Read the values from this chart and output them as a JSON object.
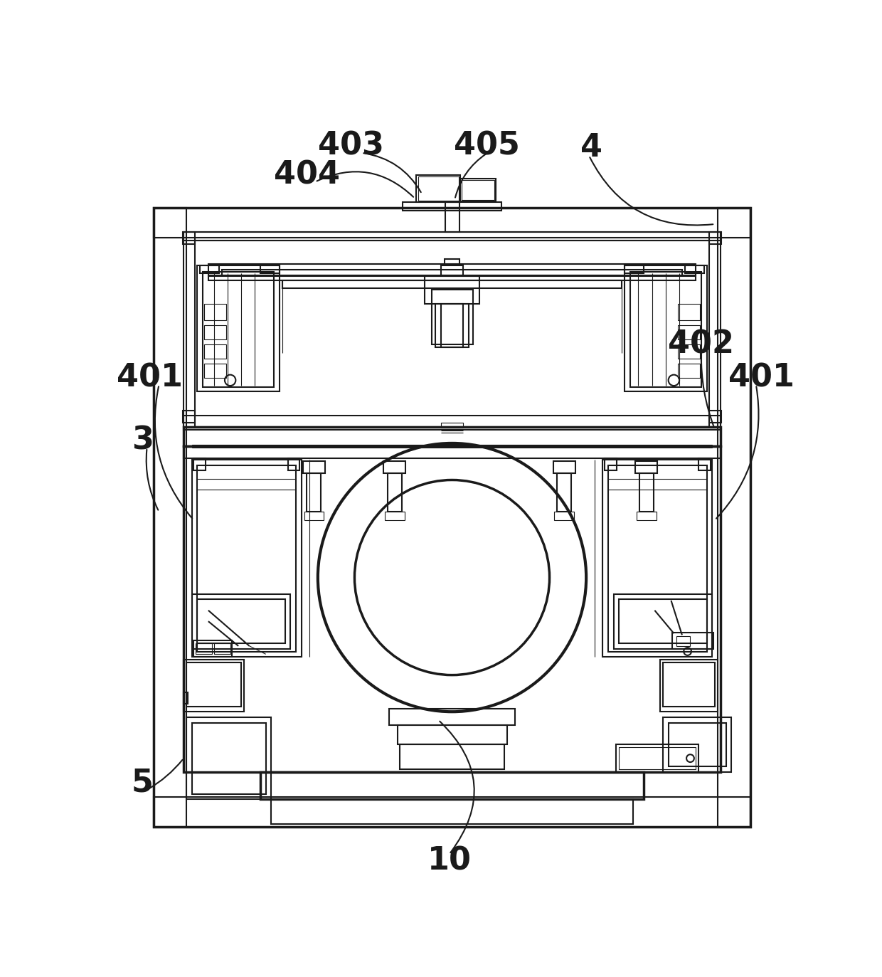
{
  "bg_color": "#ffffff",
  "lc": "#1a1a1a",
  "lw1": 2.5,
  "lw2": 1.5,
  "lw3": 0.8,
  "fig_width": 12.4,
  "fig_height": 13.73
}
